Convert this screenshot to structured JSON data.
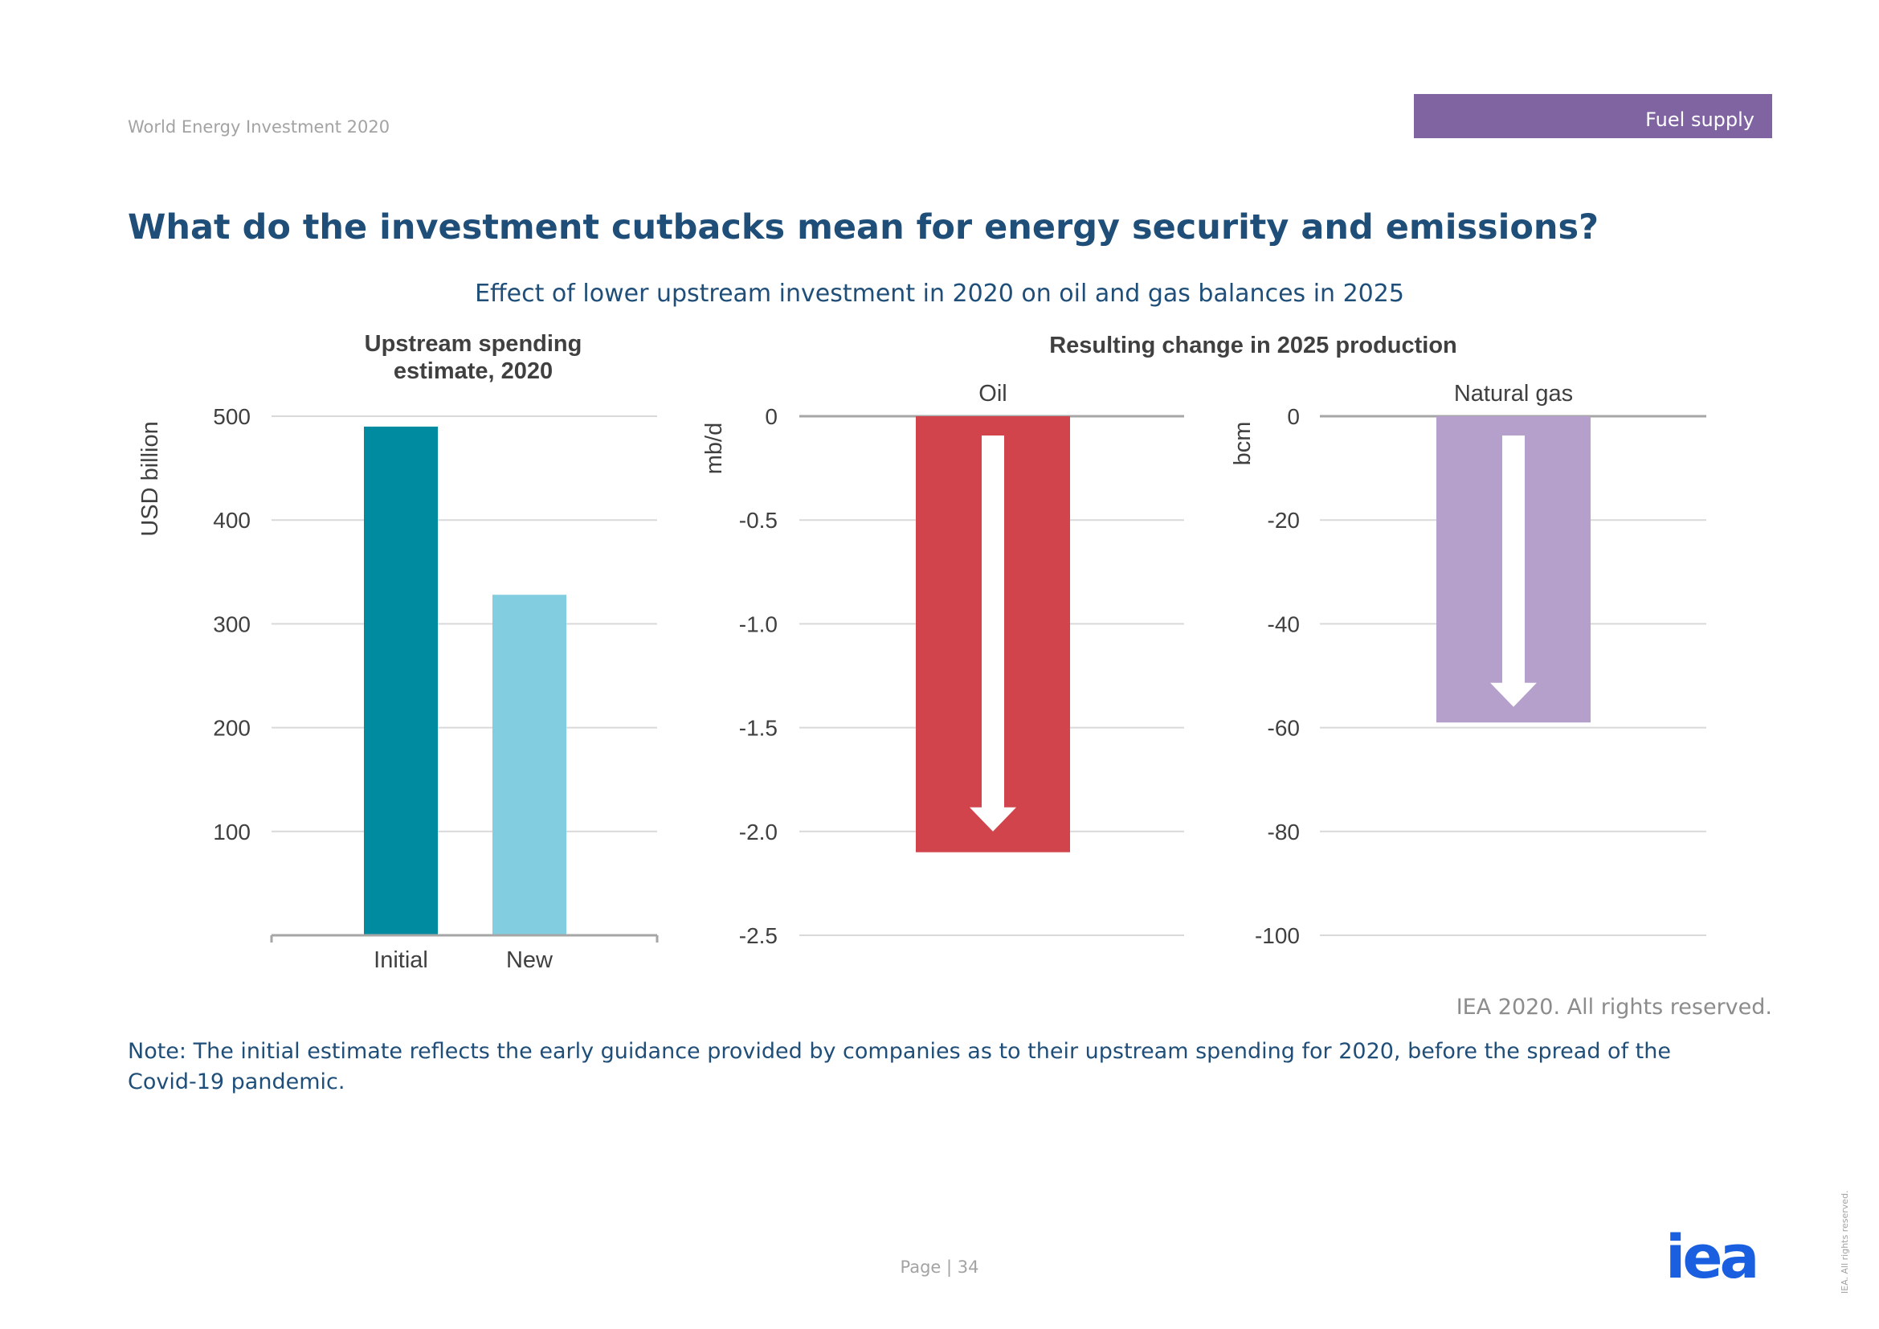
{
  "header": {
    "report_name": "World Energy Investment 2020",
    "section_tag": "Fuel supply",
    "section_tag_color": "#8064a2"
  },
  "page_title": "What do the investment cutbacks mean for energy security and emissions?",
  "chart_heading": "Effect of lower upstream investment in 2020 on oil and gas balances in 2025",
  "panel_titles": {
    "left_line1": "Upstream spending",
    "left_line2": "estimate, 2020",
    "right": "Resulting change in 2025 production"
  },
  "chart_data": [
    {
      "type": "bar",
      "title": "Upstream spending estimate, 2020",
      "categories": [
        "Initial",
        "New"
      ],
      "values": [
        490,
        328
      ],
      "colors": [
        "#008ba0",
        "#82cde0"
      ],
      "ylabel": "USD billion",
      "ylim": [
        0,
        500
      ],
      "yticks": [
        100,
        200,
        300,
        400,
        500
      ],
      "ytick_labels": [
        "100",
        "200",
        "300",
        "400",
        "500"
      ],
      "grid": true
    },
    {
      "type": "bar",
      "title": "Oil",
      "categories": [
        "Oil"
      ],
      "values": [
        -2.1
      ],
      "colors": [
        "#d1444b"
      ],
      "ylabel": "mb/d",
      "ylim": [
        -2.5,
        0
      ],
      "yticks": [
        0,
        -0.5,
        -1.0,
        -1.5,
        -2.0,
        -2.5
      ],
      "ytick_labels": [
        "0",
        "-0.5",
        "-1.0",
        "-1.5",
        "-2.0",
        "-2.5"
      ],
      "grid": true,
      "arrow_to": -2.0
    },
    {
      "type": "bar",
      "title": "Natural gas",
      "categories": [
        "Natural gas"
      ],
      "values": [
        -59
      ],
      "colors": [
        "#b59fcb"
      ],
      "ylabel": "bcm",
      "ylim": [
        -100,
        0
      ],
      "yticks": [
        0,
        -20,
        -40,
        -60,
        -80,
        -100
      ],
      "ytick_labels": [
        "0",
        "-20",
        "-40",
        "-60",
        "-80",
        "-100"
      ],
      "grid": true,
      "arrow_to": -56
    }
  ],
  "source_note": "IEA 2020. All rights reserved.",
  "note": "Note: The initial estimate reflects the early guidance provided by companies as to their upstream spending for 2020, before the spread of the Covid-19 pandemic.",
  "page_number": "Page | 34",
  "logo_text": "iea",
  "logo_color": "#1a5fe0",
  "vertical_rights": "IEA. All rights reserved."
}
